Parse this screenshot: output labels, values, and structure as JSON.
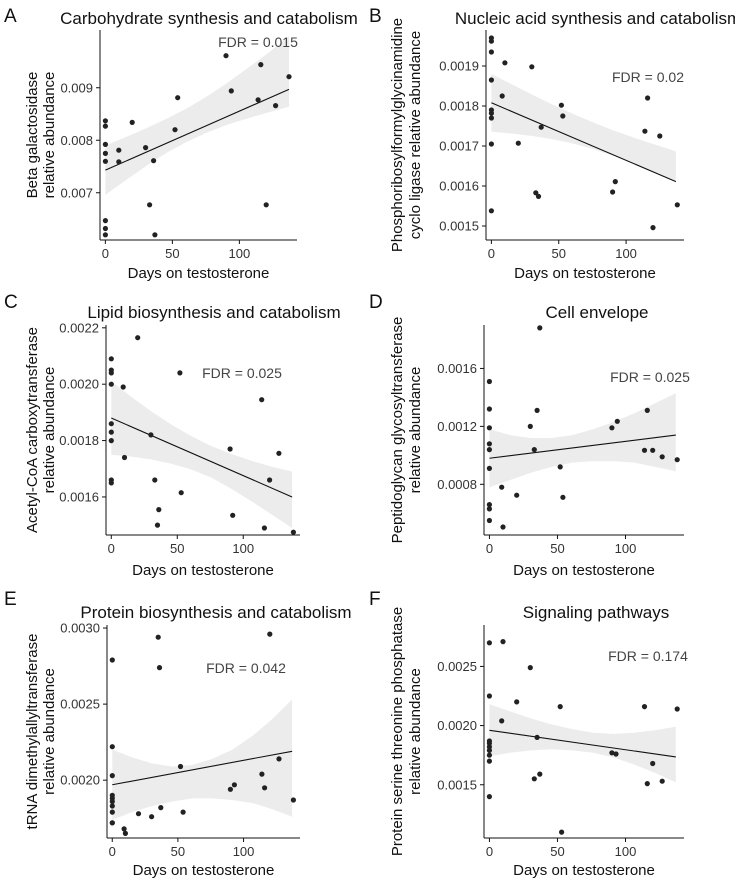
{
  "chart_data": [
    {
      "type": "scatter",
      "panel_letter": "A",
      "title": "Carbohydrate synthesis and catabolism",
      "xlabel": "Days on testosterone",
      "ylabel_lines": [
        "Beta galactosidase",
        "relative abundance"
      ],
      "annotation": "FDR = 0.015",
      "xlim": [
        -4,
        143
      ],
      "ylim": [
        0.0061,
        0.0101
      ],
      "xticks": [
        0,
        50,
        100
      ],
      "xtick_labels": [
        "0",
        "50",
        "100"
      ],
      "yticks": [
        0.007,
        0.008,
        0.009
      ],
      "ytick_labels": [
        "0.007",
        "0.008",
        "0.009"
      ],
      "points": [
        [
          0,
          0.00837
        ],
        [
          0,
          0.00827
        ],
        [
          0,
          0.00792
        ],
        [
          0,
          0.00775
        ],
        [
          0,
          0.0076
        ],
        [
          0,
          0.00647
        ],
        [
          0,
          0.00632
        ],
        [
          0,
          0.0062
        ],
        [
          10,
          0.00781
        ],
        [
          10,
          0.00759
        ],
        [
          20,
          0.00834
        ],
        [
          30,
          0.00786
        ],
        [
          33,
          0.00677
        ],
        [
          36,
          0.00761
        ],
        [
          37,
          0.0062
        ],
        [
          52,
          0.0082
        ],
        [
          54,
          0.00881
        ],
        [
          90,
          0.00961
        ],
        [
          94,
          0.00894
        ],
        [
          114,
          0.00877
        ],
        [
          116,
          0.00944
        ],
        [
          120,
          0.00677
        ],
        [
          127,
          0.00866
        ],
        [
          137,
          0.00921
        ]
      ],
      "fit": {
        "x": [
          0,
          137
        ],
        "y": [
          0.00743,
          0.00897
        ]
      },
      "band_upper": [
        0.0079,
        0.00806,
        0.00823,
        0.00841,
        0.00861,
        0.00884,
        0.0091,
        0.00938,
        0.00967,
        0.00998
      ],
      "band_lower": [
        0.00696,
        0.00724,
        0.00751,
        0.00776,
        0.00797,
        0.00815,
        0.0083,
        0.00842,
        0.00853,
        0.00864
      ]
    },
    {
      "type": "scatter",
      "panel_letter": "B",
      "title": "Nucleic acid synthesis and catabolism",
      "xlabel": "Days on testosterone",
      "ylabel_lines": [
        "Phosphoribosylformylglycinamidine",
        "cyclo ligase relative abundance"
      ],
      "annotation": "FDR = 0.02",
      "xlim": [
        -4,
        143
      ],
      "ylim": [
        0.001465,
        0.00199
      ],
      "xticks": [
        0,
        50,
        100
      ],
      "xtick_labels": [
        "0",
        "50",
        "100"
      ],
      "yticks": [
        0.0015,
        0.0016,
        0.0017,
        0.0018,
        0.0019
      ],
      "ytick_labels": [
        "0.0015",
        "0.0016",
        "0.0017",
        "0.0018",
        "0.0019"
      ],
      "points": [
        [
          0,
          0.00197
        ],
        [
          0,
          0.001962
        ],
        [
          0,
          0.001935
        ],
        [
          0,
          0.001865
        ],
        [
          0,
          0.00179
        ],
        [
          0,
          0.001782
        ],
        [
          0,
          0.00177
        ],
        [
          0,
          0.001705
        ],
        [
          0,
          0.001538
        ],
        [
          8,
          0.001825
        ],
        [
          10,
          0.001908
        ],
        [
          20,
          0.001707
        ],
        [
          30,
          0.001898
        ],
        [
          33,
          0.001583
        ],
        [
          35,
          0.001574
        ],
        [
          37,
          0.001747
        ],
        [
          52,
          0.001802
        ],
        [
          53,
          0.001775
        ],
        [
          90,
          0.001585
        ],
        [
          92,
          0.001611
        ],
        [
          114,
          0.001737
        ],
        [
          116,
          0.00182
        ],
        [
          120,
          0.001496
        ],
        [
          125,
          0.001725
        ],
        [
          138,
          0.001553
        ]
      ],
      "fit": {
        "x": [
          0,
          137
        ],
        "y": [
          0.001808,
          0.001611
        ]
      },
      "band_upper": [
        0.00188,
        0.001854,
        0.001828,
        0.001803,
        0.00178,
        0.001758,
        0.001738,
        0.00172,
        0.001703,
        0.001687
      ],
      "band_lower": [
        0.001736,
        0.001731,
        0.001725,
        0.001717,
        0.001706,
        0.001692,
        0.001674,
        0.001654,
        0.001634,
        0.001612
      ]
    },
    {
      "type": "scatter",
      "panel_letter": "C",
      "title": "Lipid biosynthesis and catabolism",
      "xlabel": "Days on testosterone",
      "ylabel_lines": [
        "Acetyl-CoA carboxytransferase",
        "relative abundance"
      ],
      "annotation": "FDR = 0.025",
      "xlim": [
        -4,
        143
      ],
      "ylim": [
        0.001465,
        0.00221
      ],
      "xticks": [
        0,
        50,
        100
      ],
      "xtick_labels": [
        "0",
        "50",
        "100"
      ],
      "yticks": [
        0.0016,
        0.0018,
        0.002,
        0.0022
      ],
      "ytick_labels": [
        "0.0016",
        "0.0018",
        "0.0020",
        "0.0022"
      ],
      "points": [
        [
          0,
          0.00209
        ],
        [
          0,
          0.00205
        ],
        [
          0,
          0.00204
        ],
        [
          0,
          0.002
        ],
        [
          0,
          0.00186
        ],
        [
          0,
          0.00183
        ],
        [
          0,
          0.0018
        ],
        [
          0,
          0.00166
        ],
        [
          0,
          0.00165
        ],
        [
          9,
          0.00199
        ],
        [
          10,
          0.00174
        ],
        [
          20,
          0.002165
        ],
        [
          30,
          0.00182
        ],
        [
          33,
          0.00166
        ],
        [
          35,
          0.0015
        ],
        [
          36,
          0.001555
        ],
        [
          52,
          0.00204
        ],
        [
          53,
          0.001615
        ],
        [
          90,
          0.00177
        ],
        [
          92,
          0.001535
        ],
        [
          114,
          0.001945
        ],
        [
          116,
          0.00149
        ],
        [
          120,
          0.00166
        ],
        [
          127,
          0.001755
        ],
        [
          138,
          0.001475
        ]
      ],
      "fit": {
        "x": [
          0,
          137
        ],
        "y": [
          0.00188,
          0.0016
        ]
      },
      "band_upper": [
        0.00201,
        0.001955,
        0.001903,
        0.001856,
        0.001815,
        0.00178,
        0.001752,
        0.001728,
        0.001707,
        0.00169
      ],
      "band_lower": [
        0.00175,
        0.001743,
        0.001733,
        0.001718,
        0.001697,
        0.001668,
        0.001628,
        0.001584,
        0.001537,
        0.00149
      ]
    },
    {
      "type": "scatter",
      "panel_letter": "D",
      "title": "Cell envelope",
      "xlabel": "Days on testosterone",
      "ylabel_lines": [
        "Peptidoglycan glycosyltransferase",
        "relative abundance"
      ],
      "annotation": "FDR = 0.025",
      "xlim": [
        -4,
        143
      ],
      "ylim": [
        0.00045,
        0.0019
      ],
      "xticks": [
        0,
        50,
        100
      ],
      "xtick_labels": [
        "0",
        "50",
        "100"
      ],
      "yticks": [
        0.0008,
        0.0012,
        0.0016
      ],
      "ytick_labels": [
        "0.0008",
        "0.0012",
        "0.0016"
      ],
      "points": [
        [
          0,
          0.00151
        ],
        [
          0,
          0.00132
        ],
        [
          0,
          0.00119
        ],
        [
          0,
          0.00108
        ],
        [
          0,
          0.00104
        ],
        [
          0,
          0.00091
        ],
        [
          0,
          0.00066
        ],
        [
          0,
          0.00063
        ],
        [
          0,
          0.00055
        ],
        [
          9,
          0.00078
        ],
        [
          10,
          0.000505
        ],
        [
          20,
          0.000725
        ],
        [
          30,
          0.0012
        ],
        [
          33,
          0.00104
        ],
        [
          35,
          0.00131
        ],
        [
          37,
          0.00188
        ],
        [
          52,
          0.00092
        ],
        [
          54,
          0.00071
        ],
        [
          90,
          0.00119
        ],
        [
          94,
          0.001235
        ],
        [
          114,
          0.001035
        ],
        [
          116,
          0.00131
        ],
        [
          120,
          0.001035
        ],
        [
          127,
          0.00099
        ],
        [
          138,
          0.00097
        ]
      ],
      "fit": {
        "x": [
          0,
          137
        ],
        "y": [
          0.00098,
          0.00114
        ]
      },
      "band_upper": [
        0.00118,
        0.00114,
        0.00112,
        0.00112,
        0.00114,
        0.00118,
        0.00123,
        0.00129,
        0.00136,
        0.00143
      ],
      "band_lower": [
        0.00078,
        0.00083,
        0.00088,
        0.00092,
        0.00095,
        0.00096,
        0.00096,
        0.00095,
        0.00092,
        0.00089
      ]
    },
    {
      "type": "scatter",
      "panel_letter": "E",
      "title": "Protein biosynthesis and catabolism",
      "xlabel": "Days on testosterone",
      "ylabel_lines": [
        "tRNA dimethylallyltransferase",
        "relative abundance"
      ],
      "annotation": "FDR = 0.042",
      "xlim": [
        -4,
        143
      ],
      "ylim": [
        0.00162,
        0.00302
      ],
      "xticks": [
        0,
        50,
        100
      ],
      "xtick_labels": [
        "0",
        "50",
        "100"
      ],
      "yticks": [
        0.002,
        0.0025,
        0.003
      ],
      "ytick_labels": [
        "0.0020",
        "0.0025",
        "0.0030"
      ],
      "points": [
        [
          0,
          0.00279
        ],
        [
          0,
          0.00222
        ],
        [
          0,
          0.00203
        ],
        [
          0,
          0.0019
        ],
        [
          0,
          0.00188
        ],
        [
          0,
          0.00186
        ],
        [
          0,
          0.00183
        ],
        [
          0,
          0.00179
        ],
        [
          0,
          0.00172
        ],
        [
          0,
          0.00172
        ],
        [
          9,
          0.00168
        ],
        [
          10,
          0.00165
        ],
        [
          20,
          0.00178
        ],
        [
          30,
          0.00176
        ],
        [
          35,
          0.00294
        ],
        [
          36,
          0.00274
        ],
        [
          37,
          0.00182
        ],
        [
          52,
          0.00209
        ],
        [
          54,
          0.00179
        ],
        [
          90,
          0.00194
        ],
        [
          93,
          0.00197
        ],
        [
          114,
          0.00204
        ],
        [
          116,
          0.00195
        ],
        [
          120,
          0.00296
        ],
        [
          127,
          0.00214
        ],
        [
          138,
          0.00187
        ]
      ],
      "fit": {
        "x": [
          0,
          137
        ],
        "y": [
          0.00197,
          0.00219
        ]
      },
      "band_upper": [
        0.0022,
        0.00215,
        0.00211,
        0.00209,
        0.0021,
        0.00214,
        0.0022,
        0.00229,
        0.0024,
        0.00253
      ],
      "band_lower": [
        0.00174,
        0.00179,
        0.00183,
        0.00186,
        0.00188,
        0.00188,
        0.00187,
        0.00185,
        0.00181,
        0.00176
      ]
    },
    {
      "type": "scatter",
      "panel_letter": "F",
      "title": "Signaling pathways",
      "xlabel": "Days on testosterone",
      "ylabel_lines": [
        "Protein serine threonine phosphatase",
        "relative abundance"
      ],
      "annotation": "FDR = 0.174",
      "xlim": [
        -4,
        143
      ],
      "ylim": [
        0.00105,
        0.00285
      ],
      "xticks": [
        0,
        50,
        100
      ],
      "xtick_labels": [
        "0",
        "50",
        "100"
      ],
      "yticks": [
        0.0015,
        0.002,
        0.0025
      ],
      "ytick_labels": [
        "0.0015",
        "0.0020",
        "0.0025"
      ],
      "points": [
        [
          0,
          0.0027
        ],
        [
          0,
          0.00225
        ],
        [
          0,
          0.00187
        ],
        [
          0,
          0.00185
        ],
        [
          0,
          0.00182
        ],
        [
          0,
          0.00179
        ],
        [
          0,
          0.00175
        ],
        [
          0,
          0.0017
        ],
        [
          0,
          0.0014
        ],
        [
          9,
          0.00204
        ],
        [
          10,
          0.00271
        ],
        [
          20,
          0.0022
        ],
        [
          30,
          0.00249
        ],
        [
          33,
          0.00155
        ],
        [
          35,
          0.0019
        ],
        [
          37,
          0.00159
        ],
        [
          52,
          0.00216
        ],
        [
          53,
          0.0011
        ],
        [
          90,
          0.00177
        ],
        [
          93,
          0.00176
        ],
        [
          114,
          0.00216
        ],
        [
          116,
          0.00151
        ],
        [
          120,
          0.00168
        ],
        [
          127,
          0.00153
        ],
        [
          138,
          0.00214
        ]
      ],
      "fit": {
        "x": [
          0,
          137
        ],
        "y": [
          0.00196,
          0.001735
        ]
      },
      "band_upper": [
        0.00218,
        0.00212,
        0.00206,
        0.00201,
        0.00197,
        0.00194,
        0.00193,
        0.00194,
        0.00196,
        0.00199
      ],
      "band_lower": [
        0.00174,
        0.00177,
        0.00179,
        0.0018,
        0.00179,
        0.00177,
        0.00173,
        0.00167,
        0.0016,
        0.00152
      ]
    }
  ]
}
